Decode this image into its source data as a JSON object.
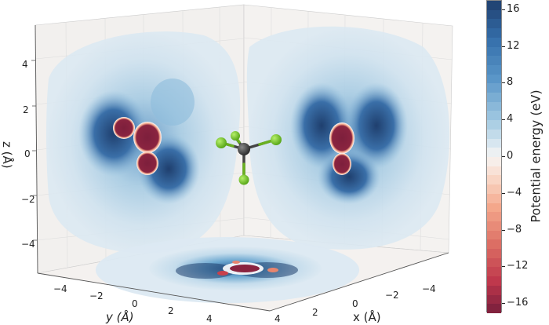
{
  "chart_data": {
    "type": "3d-contour",
    "title": "",
    "description": "3D axes with three filled-contour projections of potential energy around a tetrahedral molecule (central dark atom with four green atoms): projection on y-z wall (left), x-z wall (right) and x-y floor (bottom).",
    "xlabel": "x (Å)",
    "ylabel": "y (Å)",
    "zlabel": "z (Å)",
    "x_ticks": [
      "4",
      "2",
      "0",
      "−2",
      "−4"
    ],
    "y_ticks": [
      "−4",
      "−2",
      "0",
      "2",
      "4"
    ],
    "z_ticks": [
      "4",
      "2",
      "0",
      "−2",
      "−4"
    ],
    "xlim": [
      -5,
      5
    ],
    "ylim": [
      -5,
      5
    ],
    "zlim": [
      -5,
      5
    ],
    "grid": true,
    "colormap": "RdBu (reversed, red = negative, blue = positive)",
    "colorbar": {
      "label": "Potential energy (eV)",
      "ticks": [
        "16",
        "12",
        "8",
        "4",
        "0",
        "−4",
        "−8",
        "−12",
        "−16"
      ],
      "range": [
        -17,
        17
      ],
      "levels": 34,
      "position": "right"
    },
    "molecule": {
      "center_atom_color": "#4a4a4a",
      "ligand_atom_color": "#7ccc2a",
      "ligand_count": 4
    },
    "projections": [
      {
        "plane": "yz",
        "wall": "left",
        "min_region_lobes": 3
      },
      {
        "plane": "xz",
        "wall": "right",
        "min_region_lobes": 2
      },
      {
        "plane": "xy",
        "wall": "floor",
        "min_region_lobes": 4
      }
    ]
  },
  "colors": {
    "deep_red": "#7d1f3c",
    "red": "#c9404c",
    "salmon": "#f2a488",
    "white": "#f6f4f2",
    "light_blue": "#d4e6f1",
    "mid_blue": "#6aa6cf",
    "deep_blue": "#1f3f6e",
    "pane": "#f4f1ef"
  }
}
